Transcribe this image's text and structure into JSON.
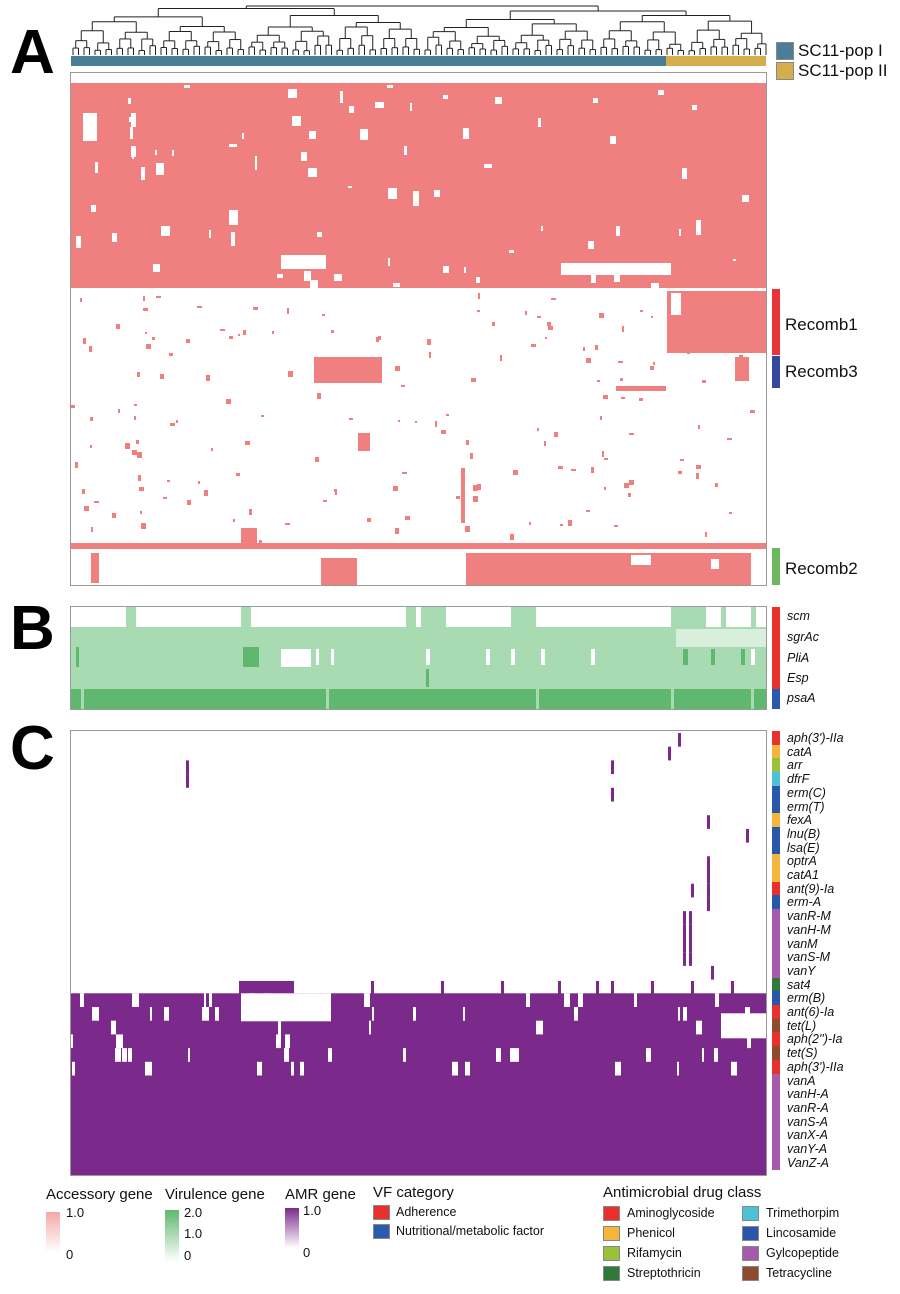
{
  "figure": {
    "panel_letters": [
      "A",
      "B",
      "C"
    ],
    "clusters": [
      {
        "name": "SC11-pop I",
        "color": "#4a7e97"
      },
      {
        "name": "SC11-pop II",
        "color": "#d3ad4e"
      }
    ]
  },
  "chart_data": [
    {
      "type": "heatmap",
      "panel": "A",
      "title": "",
      "description_note": "Accessory gene presence/absence across isolates, clustered by dendrogram",
      "columns_group_split_fraction": 0.875,
      "colorscale": {
        "min": 0,
        "max": 1.0,
        "color": "#f08080",
        "label": "Accessory gene"
      },
      "row_annotations": [
        {
          "name": "Recomb1",
          "color": "#e8353a"
        },
        {
          "name": "Recomb3",
          "color": "#35489a"
        },
        {
          "name": "Recomb2",
          "color": "#6cb760"
        }
      ]
    },
    {
      "type": "heatmap",
      "panel": "B",
      "title": "",
      "colorscale": {
        "min": 0,
        "mid": 1.0,
        "max": 2.0,
        "color": "#5fb86e",
        "label": "Virulence gene"
      },
      "rows": [
        {
          "gene": "scm",
          "category": "Adherence"
        },
        {
          "gene": "sgrAc",
          "category": "Adherence"
        },
        {
          "gene": "PliA",
          "category": "Adherence"
        },
        {
          "gene": "Esp",
          "category": "Adherence"
        },
        {
          "gene": "psaA",
          "category": "Nutritional/metabolic factor"
        }
      ]
    },
    {
      "type": "heatmap",
      "panel": "C",
      "title": "",
      "colorscale": {
        "min": 0,
        "max": 1.0,
        "color": "#7b2a8c",
        "label": "AMR gene"
      },
      "rows": [
        {
          "gene": "aph(3')-IIa",
          "class": "Aminoglycoside"
        },
        {
          "gene": "catA",
          "class": "Phenicol"
        },
        {
          "gene": "arr",
          "class": "Rifamycin"
        },
        {
          "gene": "dfrF",
          "class": "Trimethorpim"
        },
        {
          "gene": "erm(C)",
          "class": "Lincosamide"
        },
        {
          "gene": "erm(T)",
          "class": "Lincosamide"
        },
        {
          "gene": "fexA",
          "class": "Phenicol"
        },
        {
          "gene": "lnu(B)",
          "class": "Lincosamide"
        },
        {
          "gene": "lsa(E)",
          "class": "Lincosamide"
        },
        {
          "gene": "optrA",
          "class": "Phenicol"
        },
        {
          "gene": "catA1",
          "class": "Phenicol"
        },
        {
          "gene": "ant(9)-Ia",
          "class": "Aminoglycoside"
        },
        {
          "gene": "erm-A",
          "class": "Lincosamide"
        },
        {
          "gene": "vanR-M",
          "class": "Gylcopeptide"
        },
        {
          "gene": "vanH-M",
          "class": "Gylcopeptide"
        },
        {
          "gene": "vanM",
          "class": "Gylcopeptide"
        },
        {
          "gene": "vanS-M",
          "class": "Gylcopeptide"
        },
        {
          "gene": "vanY",
          "class": "Gylcopeptide"
        },
        {
          "gene": "sat4",
          "class": "Streptothricin"
        },
        {
          "gene": "erm(B)",
          "class": "Lincosamide"
        },
        {
          "gene": "ant(6)-Ia",
          "class": "Aminoglycoside"
        },
        {
          "gene": "tet(L)",
          "class": "Tetracycline"
        },
        {
          "gene": "aph(2'')-Ia",
          "class": "Aminoglycoside"
        },
        {
          "gene": "tet(S)",
          "class": "Tetracycline"
        },
        {
          "gene": "aph(3')-IIa",
          "class": "Aminoglycoside"
        },
        {
          "gene": "vanA",
          "class": "Gylcopeptide"
        },
        {
          "gene": "vanH-A",
          "class": "Gylcopeptide"
        },
        {
          "gene": "vanR-A",
          "class": "Gylcopeptide"
        },
        {
          "gene": "vanS-A",
          "class": "Gylcopeptide"
        },
        {
          "gene": "vanX-A",
          "class": "Gylcopeptide"
        },
        {
          "gene": "vanY-A",
          "class": "Gylcopeptide"
        },
        {
          "gene": "VanZ-A",
          "class": "Gylcopeptide"
        }
      ]
    }
  ],
  "legend": {
    "accessory": {
      "title": "Accessory gene",
      "max": "1.0",
      "min": "0",
      "color": "#f08080"
    },
    "virulence": {
      "title": "Virulence gene",
      "max": "2.0",
      "mid": "1.0",
      "min": "0",
      "color": "#5fb86e"
    },
    "amr": {
      "title": "AMR gene",
      "max": "1.0",
      "min": "0",
      "color": "#7b2a8c"
    },
    "vf_category": {
      "title": "VF category",
      "items": [
        {
          "label": "Adherence",
          "color": "#e8302e"
        },
        {
          "label": "Nutritional/metabolic factor",
          "color": "#2a5ab0"
        }
      ]
    },
    "drug_class": {
      "title": "Antimicrobial drug class",
      "items": [
        {
          "label": "Aminoglycoside",
          "color": "#e8302e"
        },
        {
          "label": "Phenicol",
          "color": "#f3b53a"
        },
        {
          "label": "Rifamycin",
          "color": "#99c13c"
        },
        {
          "label": "Streptothricin",
          "color": "#2f7a3a"
        },
        {
          "label": "Trimethorpim",
          "color": "#4dc1d8"
        },
        {
          "label": "Lincosamide",
          "color": "#2856a8"
        },
        {
          "label": "Gylcopeptide",
          "color": "#a65aac"
        },
        {
          "label": "Tetracycline",
          "color": "#8e4b2d"
        }
      ]
    }
  }
}
